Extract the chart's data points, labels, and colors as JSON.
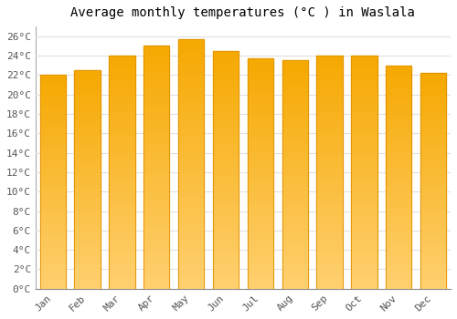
{
  "title": "Average monthly temperatures (°C ) in Waslala",
  "months": [
    "Jan",
    "Feb",
    "Mar",
    "Apr",
    "May",
    "Jun",
    "Jul",
    "Aug",
    "Sep",
    "Oct",
    "Nov",
    "Dec"
  ],
  "temperatures": [
    22.0,
    22.5,
    24.0,
    25.0,
    25.7,
    24.5,
    23.7,
    23.5,
    24.0,
    24.0,
    23.0,
    22.2
  ],
  "bar_color_top": "#F5A800",
  "bar_color_bottom": "#FFD070",
  "bar_edge_color": "#E09000",
  "ylim": [
    0,
    27
  ],
  "ytick_step": 2,
  "background_color": "#FFFFFF",
  "plot_bg_color": "#FFFFFF",
  "grid_color": "#E0E0E0",
  "title_fontsize": 10,
  "tick_fontsize": 8,
  "font_family": "monospace",
  "bar_width": 0.75,
  "n_grad": 60
}
